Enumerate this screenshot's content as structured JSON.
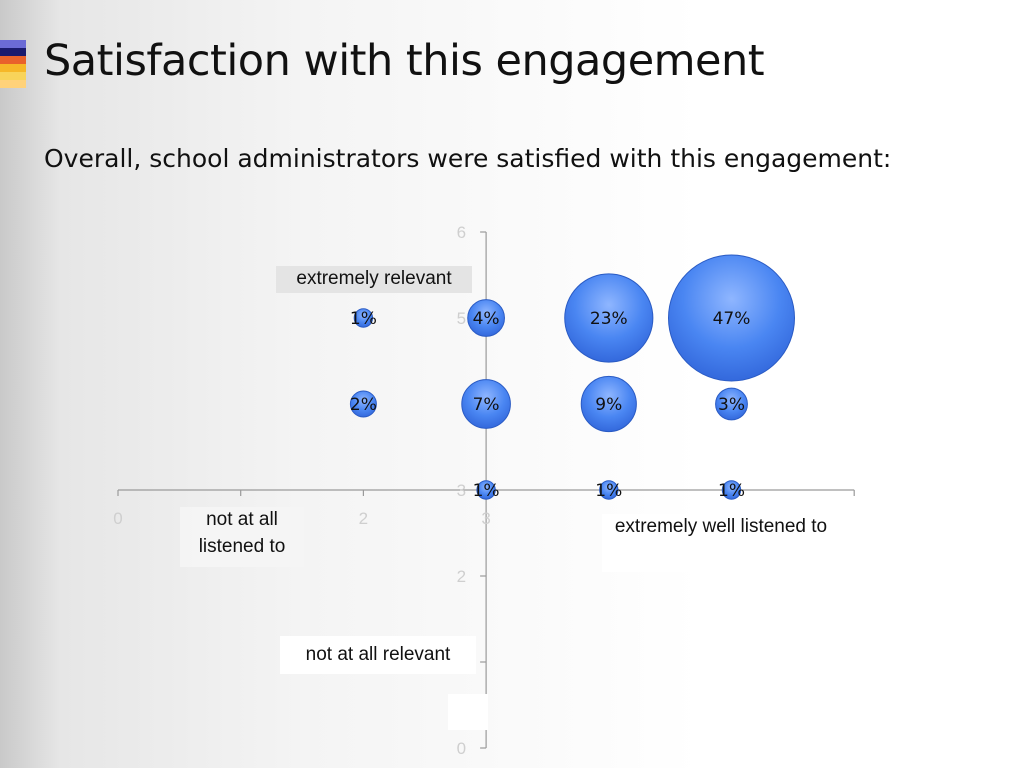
{
  "slide": {
    "title": "Satisfaction with this engagement",
    "subtitle": "Overall, school administrators were satisfied with this engagement:",
    "accent_colors": [
      "#6b6bd6",
      "#1a1a6e",
      "#e9622b",
      "#f6b828",
      "#f8d45a",
      "#ffd27a"
    ]
  },
  "chart_data": {
    "type": "scatter",
    "title": "",
    "xlabel": "",
    "ylabel": "",
    "xlim": [
      0,
      6
    ],
    "ylim": [
      0,
      6
    ],
    "x_ticks": [
      "0",
      "2",
      "3"
    ],
    "y_ticks": [
      "0",
      "2",
      "3",
      "5",
      "6"
    ],
    "bubble_color": "#3d7ef0",
    "points": [
      {
        "x": 2,
        "y": 5,
        "label": "1%",
        "value": 1
      },
      {
        "x": 3,
        "y": 5,
        "label": "4%",
        "value": 4
      },
      {
        "x": 4,
        "y": 5,
        "label": "23%",
        "value": 23
      },
      {
        "x": 5,
        "y": 5,
        "label": "47%",
        "value": 47
      },
      {
        "x": 2,
        "y": 4,
        "label": "2%",
        "value": 2
      },
      {
        "x": 3,
        "y": 4,
        "label": "7%",
        "value": 7
      },
      {
        "x": 4,
        "y": 4,
        "label": "9%",
        "value": 9
      },
      {
        "x": 5,
        "y": 4,
        "label": "3%",
        "value": 3
      },
      {
        "x": 3,
        "y": 3,
        "label": "1%",
        "value": 1
      },
      {
        "x": 4,
        "y": 3,
        "label": "1%",
        "value": 1
      },
      {
        "x": 5,
        "y": 3,
        "label": "1%",
        "value": 1
      }
    ],
    "annotations": {
      "y_top": "extremely relevant",
      "y_bottom": "not at all relevant",
      "x_left": "not at all listened to",
      "x_right": "extremely well listened to"
    }
  }
}
